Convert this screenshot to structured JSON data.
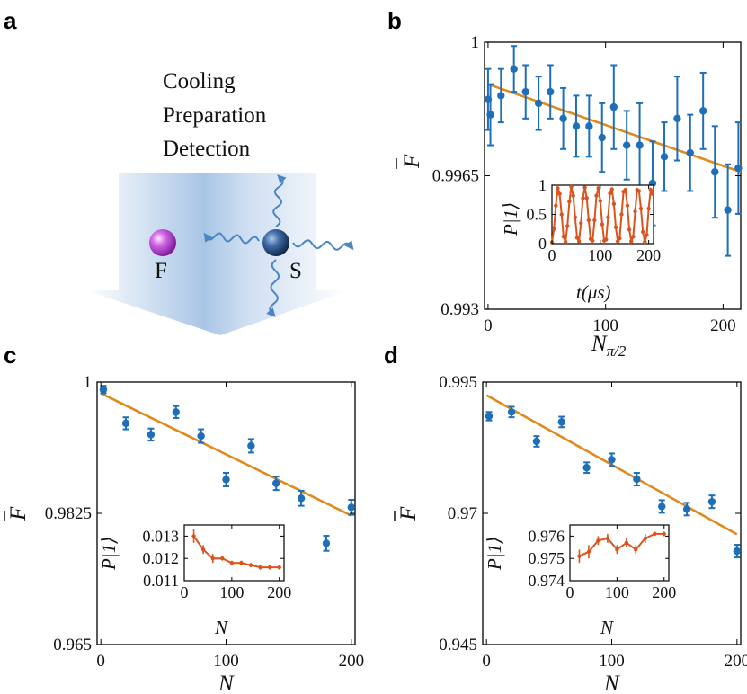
{
  "panel_labels": [
    "a",
    "b",
    "c",
    "d"
  ],
  "schematic": {
    "lines": [
      "Cooling",
      "Preparation",
      "Detection"
    ],
    "ion_f_label": "F",
    "ion_s_label": "S"
  },
  "colors": {
    "data": "#1f6fb8",
    "fit": "#e08a1e",
    "inset": "#d9541e",
    "ion_f": "#a020c0",
    "ion_s": "#1c3d6e",
    "beam": "#b9cde6",
    "wave": "#4a86c5"
  },
  "chart_data": [
    {
      "id": "b",
      "type": "scatter",
      "xlabel_main": "N",
      "xlabel_sub": "π/2",
      "ylabel": "F",
      "xlim": [
        -3,
        215
      ],
      "ylim": [
        0.993,
        1.0
      ],
      "xticks": [
        0,
        100,
        200
      ],
      "yticks": [
        0.993,
        0.9965,
        1.0
      ],
      "ytick_labels": [
        "0.993",
        "0.9965",
        "1"
      ],
      "series": [
        {
          "name": "data",
          "x": [
            0,
            2,
            11,
            22,
            32,
            43,
            53,
            64,
            75,
            86,
            97,
            107,
            118,
            129,
            140,
            150,
            161,
            172,
            183,
            193,
            204,
            213
          ],
          "y": [
            0.9985,
            0.9981,
            0.9986,
            0.9993,
            0.9987,
            0.9984,
            0.9987,
            0.998,
            0.9978,
            0.9978,
            0.9975,
            0.9983,
            0.9973,
            0.9973,
            0.9963,
            0.997,
            0.998,
            0.9971,
            0.9982,
            0.9966,
            0.9956,
            0.9967
          ],
          "err": [
            0.0008,
            0.0008,
            0.0007,
            0.0006,
            0.0007,
            0.0007,
            0.0007,
            0.0008,
            0.0008,
            0.0008,
            0.0009,
            0.0011,
            0.0009,
            0.0011,
            0.0011,
            0.0009,
            0.0011,
            0.001,
            0.001,
            0.0012,
            0.0012,
            0.0012
          ]
        },
        {
          "name": "fit",
          "x": [
            0,
            215
          ],
          "y": [
            0.9989,
            0.9966
          ]
        }
      ],
      "inset": {
        "type": "line",
        "ylabel": "P|1⟩",
        "xlabel": "t(μs)",
        "xlim": [
          0,
          210
        ],
        "ylim": [
          0,
          1
        ],
        "xticks": [
          0,
          100,
          200
        ],
        "yticks": [
          0,
          0.5,
          1
        ],
        "ytick_labels": [
          "0",
          "0.5",
          "1"
        ],
        "x": [
          0,
          4,
          8,
          12,
          16,
          20,
          24,
          28,
          32,
          36,
          40,
          44,
          48,
          52,
          56,
          60,
          64,
          68,
          72,
          76,
          80,
          84,
          88,
          92,
          96,
          100,
          104,
          108,
          112,
          116,
          120,
          124,
          128,
          132,
          136,
          140,
          144,
          148,
          152,
          156,
          160,
          164,
          168,
          172,
          176,
          180,
          184,
          188,
          192,
          196,
          200,
          204,
          208
        ],
        "y": [
          0.02,
          0.25,
          0.65,
          0.95,
          0.85,
          0.5,
          0.12,
          0.03,
          0.3,
          0.72,
          0.97,
          0.82,
          0.45,
          0.1,
          0.04,
          0.35,
          0.78,
          0.96,
          0.78,
          0.4,
          0.08,
          0.05,
          0.4,
          0.82,
          0.95,
          0.73,
          0.33,
          0.05,
          0.07,
          0.45,
          0.86,
          0.93,
          0.68,
          0.28,
          0.04,
          0.09,
          0.5,
          0.89,
          0.92,
          0.65,
          0.24,
          0.04,
          0.12,
          0.55,
          0.92,
          0.9,
          0.6,
          0.2,
          0.03,
          0.15,
          0.6,
          0.92,
          0.85
        ]
      }
    },
    {
      "id": "c",
      "type": "scatter",
      "xlabel": "N",
      "ylabel": "F",
      "xlim": [
        -3,
        203
      ],
      "ylim": [
        0.965,
        1.0
      ],
      "xticks": [
        0,
        100,
        200
      ],
      "yticks": [
        0.965,
        0.9825,
        1.0
      ],
      "ytick_labels": [
        "0.965",
        "0.9825",
        "1"
      ],
      "series": [
        {
          "name": "data",
          "x": [
            2,
            20,
            40,
            60,
            80,
            100,
            120,
            140,
            160,
            180,
            200
          ],
          "y": [
            0.999,
            0.9945,
            0.993,
            0.996,
            0.9928,
            0.987,
            0.9915,
            0.9865,
            0.9845,
            0.9785,
            0.9833
          ],
          "err": [
            0.0005,
            0.0008,
            0.0008,
            0.0008,
            0.0009,
            0.0009,
            0.0009,
            0.0009,
            0.001,
            0.001,
            0.001
          ]
        },
        {
          "name": "fit",
          "x": [
            0,
            200
          ],
          "y": [
            0.9985,
            0.9822
          ]
        }
      ],
      "inset": {
        "type": "line",
        "ylabel": "P|1⟩",
        "xlabel": "N",
        "xlim": [
          0,
          210
        ],
        "ylim": [
          0.011,
          0.0135
        ],
        "xticks": [
          0,
          100,
          200
        ],
        "yticks": [
          0.011,
          0.012,
          0.013
        ],
        "ytick_labels": [
          "0.011",
          "0.012",
          "0.013"
        ],
        "x": [
          20,
          40,
          60,
          80,
          100,
          120,
          140,
          160,
          180,
          200
        ],
        "y": [
          0.013,
          0.0124,
          0.012,
          0.012,
          0.0118,
          0.0118,
          0.0117,
          0.0116,
          0.0116,
          0.0116
        ],
        "err": [
          0.0003,
          0.0002,
          0.0002,
          0.0001,
          0.0001,
          0.0001,
          0.0001,
          0.0001,
          0.0001,
          0.0001
        ]
      }
    },
    {
      "id": "d",
      "type": "scatter",
      "xlabel": "N",
      "ylabel": "F",
      "xlim": [
        -3,
        203
      ],
      "ylim": [
        0.945,
        0.995
      ],
      "xticks": [
        0,
        100,
        200
      ],
      "yticks": [
        0.945,
        0.97,
        0.995
      ],
      "ytick_labels": [
        "0.945",
        "0.97",
        "0.995"
      ],
      "series": [
        {
          "name": "data",
          "x": [
            2,
            20,
            40,
            60,
            80,
            100,
            120,
            140,
            160,
            180,
            200
          ],
          "y": [
            0.9885,
            0.9893,
            0.9837,
            0.9874,
            0.9787,
            0.9802,
            0.9765,
            0.9713,
            0.9708,
            0.9722,
            0.9628
          ],
          "err": [
            0.0008,
            0.001,
            0.001,
            0.001,
            0.001,
            0.0012,
            0.0012,
            0.0012,
            0.0012,
            0.0012,
            0.0012
          ]
        },
        {
          "name": "fit",
          "x": [
            0,
            200
          ],
          "y": [
            0.9925,
            0.966
          ]
        }
      ],
      "inset": {
        "type": "line",
        "ylabel": "P|1⟩",
        "xlabel": "N",
        "xlim": [
          0,
          210
        ],
        "ylim": [
          0.974,
          0.9765
        ],
        "xticks": [
          0,
          100,
          200
        ],
        "yticks": [
          0.974,
          0.975,
          0.976
        ],
        "ytick_labels": [
          "0.974",
          "0.975",
          "0.976"
        ],
        "x": [
          20,
          40,
          60,
          80,
          100,
          120,
          140,
          160,
          180,
          200
        ],
        "y": [
          0.9751,
          0.9753,
          0.9758,
          0.9759,
          0.9754,
          0.9757,
          0.9754,
          0.9759,
          0.9761,
          0.9761
        ],
        "err": [
          0.0003,
          0.0003,
          0.0002,
          0.0002,
          0.0002,
          0.0002,
          0.0002,
          0.0002,
          0.0001,
          0.0001
        ]
      }
    }
  ]
}
